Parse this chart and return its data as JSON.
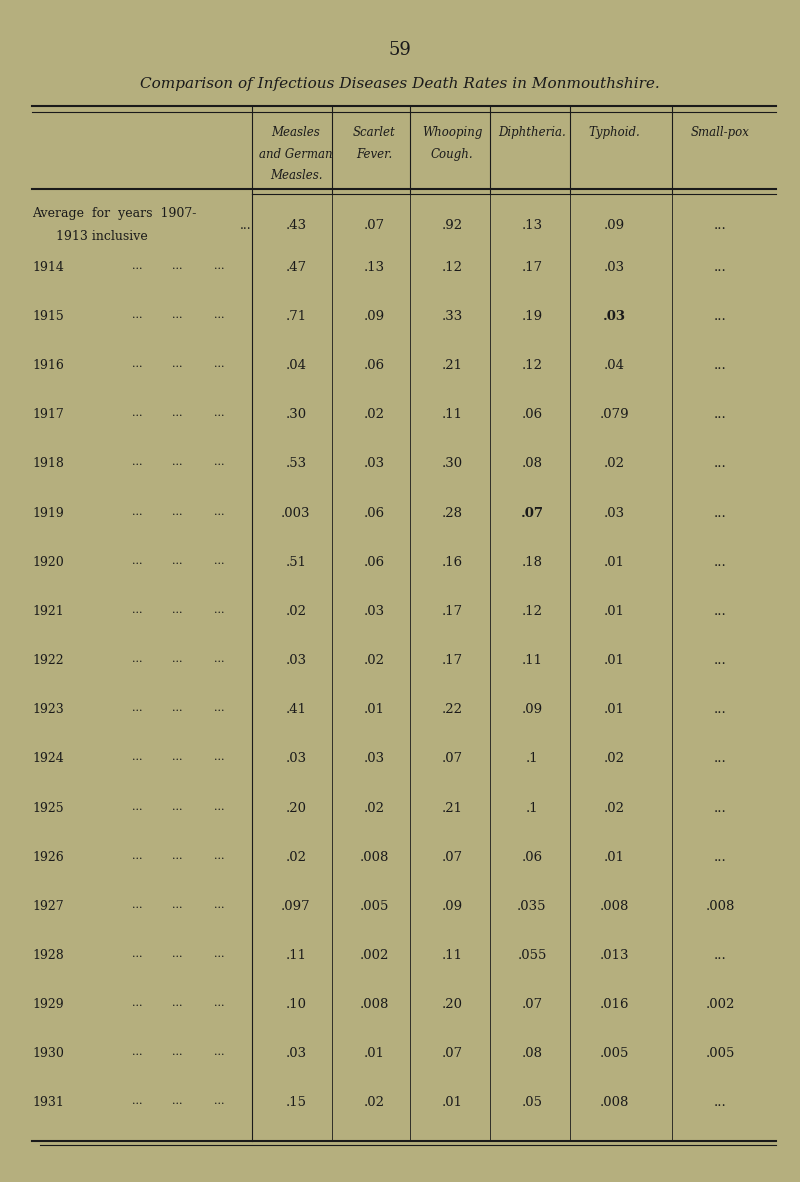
{
  "page_number": "59",
  "title": "Comparison of Infectious Diseases Death Rates in Monmouthshire.",
  "col_headers": [
    [
      "Measles",
      "and German",
      "Measles."
    ],
    [
      "Scarlet",
      "Fever."
    ],
    [
      "Whooping",
      "Cough."
    ],
    [
      "Diphtheria."
    ],
    [
      "Typhoid."
    ],
    [
      "Small-pox"
    ]
  ],
  "rows": [
    {
      "label": "Average for years 1907-\n    1913 inclusive",
      "dots": "...",
      "values": [
        ".43",
        ".07",
        ".92",
        ".13",
        ".09",
        "..."
      ]
    },
    {
      "label": "1914",
      "dots": "... ... ...",
      "values": [
        ".47",
        ".13",
        ".12",
        ".17",
        ".03",
        "..."
      ]
    },
    {
      "label": "1915",
      "dots": "... ... ...",
      "values": [
        ".71",
        ".09",
        ".33",
        ".19",
        ".03",
        "..."
      ]
    },
    {
      "label": "1916",
      "dots": "... ... ...",
      "values": [
        ".04",
        ".06",
        ".21",
        ".12",
        ".04",
        "..."
      ]
    },
    {
      "label": "1917",
      "dots": "... ... ...",
      "values": [
        ".30",
        ".02",
        ".11",
        ".06",
        ".079",
        "..."
      ]
    },
    {
      "label": "1918",
      "dots": "... ... ...",
      "values": [
        ".53",
        ".03",
        ".30",
        ".08",
        ".02",
        "..."
      ]
    },
    {
      "label": "1919",
      "dots": "... ... ...",
      "values": [
        ".003",
        ".06",
        ".28",
        ".07",
        ".03",
        "..."
      ]
    },
    {
      "label": "1920",
      "dots": "... ... ...",
      "values": [
        ".51",
        ".06",
        ".16",
        ".18",
        ".01",
        "..."
      ]
    },
    {
      "label": "1921",
      "dots": "... ... ...",
      "values": [
        ".02",
        ".03",
        ".17",
        ".12",
        ".01",
        "..."
      ]
    },
    {
      "label": "1922",
      "dots": "... ... ...",
      "values": [
        ".03",
        ".02",
        ".17",
        ".11",
        ".01",
        "..."
      ]
    },
    {
      "label": "1923",
      "dots": "... ... ...",
      "values": [
        ".41",
        ".01",
        ".22",
        ".09",
        ".01",
        "..."
      ]
    },
    {
      "label": "1924",
      "dots": "... ... ...",
      "values": [
        ".03",
        ".03",
        ".07",
        ".1",
        ".02",
        "..."
      ]
    },
    {
      "label": "1925",
      "dots": "... ... ...",
      "values": [
        ".20",
        ".02",
        ".21",
        ".1",
        ".02",
        "..."
      ]
    },
    {
      "label": "1926",
      "dots": "... ... ...",
      "values": [
        ".02",
        ".008",
        ".07",
        ".06",
        ".01",
        "..."
      ]
    },
    {
      "label": "1927",
      "dots": "... ... ...",
      "values": [
        ".097",
        ".005",
        ".09",
        ".035",
        ".008",
        ".008"
      ]
    },
    {
      "label": "1928",
      "dots": "... ... ...",
      "values": [
        ".11",
        ".002",
        ".11",
        ".055",
        ".013",
        "..."
      ]
    },
    {
      "label": "1929",
      "dots": "... ... ...",
      "values": [
        ".10",
        ".008",
        ".20",
        ".07",
        ".016",
        ".002"
      ]
    },
    {
      "label": "1930",
      "dots": "... ... ...",
      "values": [
        ".03",
        ".01",
        ".07",
        ".08",
        ".005",
        ".005"
      ]
    },
    {
      "label": "1931",
      "dots": "..., ... ...",
      "values": [
        ".15",
        ".02",
        ".01",
        ".05",
        ".008",
        "..."
      ]
    }
  ],
  "bg_color": "#b5af7e",
  "text_color": "#1a1a1a",
  "title_color": "#1a1a1a"
}
